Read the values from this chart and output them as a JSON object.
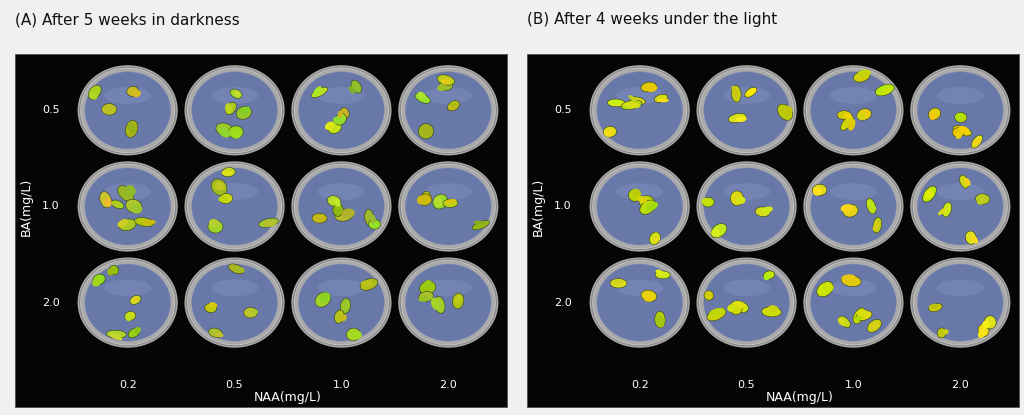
{
  "panel_A_title": "(A) After 5 weeks in darkness",
  "panel_B_title": "(B) After 4 weeks under the light",
  "ba_labels": [
    "0.5",
    "1.0",
    "2.0"
  ],
  "naa_labels": [
    "0.2",
    "0.5",
    "1.0",
    "2.0"
  ],
  "ba_axis_label": "BA(mg/L)",
  "naa_axis_label": "NAA(mg/L)",
  "figure_bg": "#f0f0f0",
  "title_color": "#111111",
  "title_fontsize": 11,
  "label_fontsize": 8,
  "figsize": [
    10.24,
    4.15
  ],
  "dpi": 100
}
